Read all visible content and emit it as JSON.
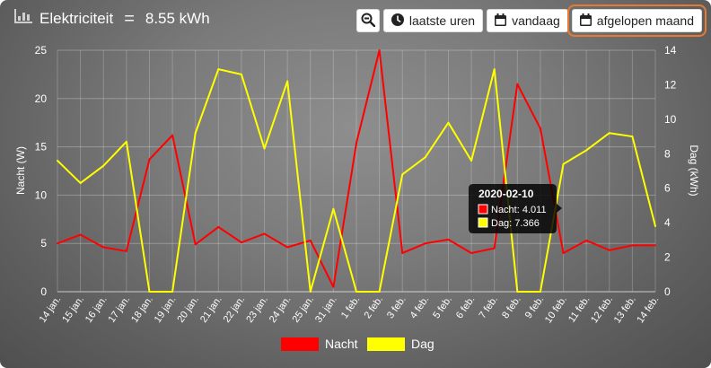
{
  "header": {
    "title": "Elektriciteit",
    "equals": "=",
    "total": "8.55 kWh"
  },
  "toolbar": {
    "zoom_icon": "zoom-out-icon",
    "buttons": [
      {
        "label": "laatste uren",
        "icon": "clock-icon"
      },
      {
        "label": "vandaag",
        "icon": "calendar-icon"
      },
      {
        "label": "afgelopen maand",
        "icon": "calendar-icon",
        "active": true
      }
    ]
  },
  "chart_data": {
    "type": "line",
    "categories": [
      "14 jan.",
      "15 jan.",
      "16 jan.",
      "17 jan.",
      "18 jan.",
      "19 jan.",
      "20 jan.",
      "21 jan.",
      "22 jan.",
      "23 jan.",
      "24 jan.",
      "25 jan.",
      "31 jan.",
      "1 feb.",
      "2 feb.",
      "3 feb.",
      "4 feb.",
      "5 feb.",
      "6 feb.",
      "7 feb.",
      "8 feb.",
      "9 feb.",
      "10 feb.",
      "11 feb.",
      "12 feb.",
      "13 feb.",
      "14 feb."
    ],
    "series": [
      {
        "name": "Nacht",
        "axis": "left",
        "color": "#ff0000",
        "values": [
          5.0,
          5.9,
          4.6,
          4.2,
          13.7,
          16.2,
          4.9,
          6.7,
          5.1,
          6.0,
          4.6,
          5.3,
          0.5,
          15.4,
          25.0,
          4.0,
          5.0,
          5.4,
          4.0,
          4.5,
          21.5,
          16.9,
          4.0,
          5.3,
          4.3,
          4.8,
          4.8
        ]
      },
      {
        "name": "Dag",
        "axis": "right",
        "color": "#ffff00",
        "values": [
          7.6,
          6.3,
          7.3,
          8.7,
          0,
          0,
          9.2,
          12.9,
          12.6,
          8.3,
          12.2,
          0,
          4.8,
          0,
          0,
          6.8,
          7.8,
          9.8,
          7.6,
          12.9,
          0,
          0,
          7.4,
          8.2,
          9.2,
          9.0,
          3.8
        ]
      }
    ],
    "ylabel": "Nacht (W)",
    "y2label": "Dag (kWh)",
    "ylim": [
      0,
      25
    ],
    "y2lim": [
      0,
      14
    ],
    "yticks": [
      0,
      5,
      10,
      15,
      20,
      25
    ],
    "y2ticks": [
      0,
      2,
      4,
      6,
      8,
      10,
      12,
      14
    ],
    "grid": true,
    "legend": "bottom",
    "tooltip": {
      "title": "2020-02-10",
      "lines": [
        "Nacht: 4.011",
        "Dag: 7.366"
      ]
    }
  }
}
